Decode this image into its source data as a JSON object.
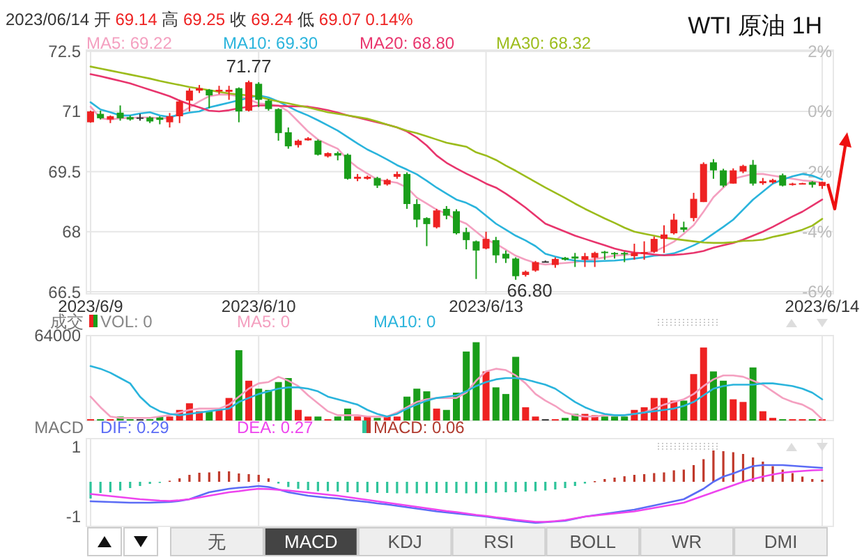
{
  "chart_data": [
    {
      "type": "candlestick",
      "title": "WTI 原油 1H",
      "annotations": [
        "2023/06/14 开 69.14 高 69.25 收 69.24 低 69.07 0.14%",
        {
          "text": "71.77",
          "y": 71.77
        },
        {
          "text": "66.80",
          "y": 66.8
        }
      ],
      "categories": [
        "2023/6/9",
        null,
        null,
        null,
        null,
        null,
        null,
        null,
        null,
        null,
        null,
        null,
        null,
        null,
        null,
        null,
        null,
        "2023/6/10",
        null,
        null,
        null,
        null,
        null,
        null,
        null,
        null,
        null,
        null,
        null,
        null,
        null,
        null,
        null,
        null,
        null,
        null,
        null,
        null,
        null,
        null,
        "2023/6/13",
        null,
        null,
        null,
        null,
        null,
        null,
        null,
        null,
        null,
        null,
        null,
        null,
        null,
        null,
        null,
        null,
        null,
        null,
        null,
        null,
        null,
        null,
        null,
        null,
        null,
        null,
        null,
        null,
        null,
        null,
        null,
        null,
        null,
        "2023/6/14"
      ],
      "ohlc": [
        [
          70.73,
          71.02,
          70.72,
          71.0
        ],
        [
          70.94,
          71.02,
          70.8,
          70.83
        ],
        [
          70.8,
          70.9,
          70.71,
          70.88
        ],
        [
          70.97,
          71.15,
          70.77,
          70.83
        ],
        [
          70.86,
          70.9,
          70.77,
          70.8
        ],
        [
          70.85,
          70.94,
          70.77,
          70.85
        ],
        [
          70.85,
          70.88,
          70.71,
          70.75
        ],
        [
          70.85,
          70.88,
          70.68,
          70.79
        ],
        [
          70.73,
          70.96,
          70.6,
          70.88
        ],
        [
          70.88,
          71.29,
          70.71,
          71.25
        ],
        [
          71.27,
          71.58,
          71.0,
          71.52
        ],
        [
          71.52,
          71.66,
          71.46,
          71.58
        ],
        [
          71.54,
          71.56,
          71.08,
          71.4
        ],
        [
          71.5,
          71.64,
          71.43,
          71.54
        ],
        [
          71.49,
          71.64,
          71.29,
          71.54
        ],
        [
          71.58,
          71.6,
          70.73,
          71.0
        ],
        [
          71.02,
          71.77,
          71.0,
          71.73
        ],
        [
          71.69,
          71.73,
          71.11,
          71.29
        ],
        [
          71.27,
          71.31,
          71.02,
          71.06
        ],
        [
          71.06,
          71.08,
          70.27,
          70.46
        ],
        [
          70.48,
          70.6,
          70.07,
          70.13
        ],
        [
          70.16,
          70.3,
          70.1,
          70.27
        ],
        [
          70.28,
          70.36,
          70.27,
          70.33
        ],
        [
          70.27,
          70.3,
          69.9,
          69.92
        ],
        [
          69.88,
          69.98,
          69.85,
          69.96
        ],
        [
          69.96,
          70.0,
          69.78,
          69.9
        ],
        [
          69.92,
          69.95,
          69.3,
          69.32
        ],
        [
          69.32,
          69.44,
          69.26,
          69.37
        ],
        [
          69.32,
          69.4,
          69.3,
          69.37
        ],
        [
          69.34,
          69.37,
          69.09,
          69.15
        ],
        [
          69.18,
          69.32,
          69.15,
          69.29
        ],
        [
          69.37,
          69.5,
          69.32,
          69.44
        ],
        [
          69.44,
          69.48,
          68.57,
          68.69
        ],
        [
          68.69,
          68.81,
          68.11,
          68.3
        ],
        [
          68.34,
          68.36,
          67.64,
          68.19
        ],
        [
          68.11,
          68.57,
          68.08,
          68.53
        ],
        [
          68.57,
          68.64,
          68.31,
          68.4
        ],
        [
          68.51,
          68.56,
          67.93,
          67.96
        ],
        [
          67.99,
          68.1,
          67.56,
          67.79
        ],
        [
          67.76,
          67.78,
          66.82,
          67.53
        ],
        [
          67.58,
          68.0,
          67.56,
          67.82
        ],
        [
          67.79,
          67.87,
          67.22,
          67.41
        ],
        [
          67.45,
          67.53,
          67.22,
          67.33
        ],
        [
          67.33,
          67.36,
          66.8,
          66.89
        ],
        [
          66.92,
          67.03,
          66.88,
          67.0
        ],
        [
          67.03,
          67.27,
          67.0,
          67.24
        ],
        [
          67.26,
          67.28,
          67.24,
          67.26
        ],
        [
          67.17,
          67.36,
          67.1,
          67.32
        ],
        [
          67.35,
          67.37,
          67.28,
          67.3
        ],
        [
          67.38,
          67.47,
          67.12,
          67.33
        ],
        [
          67.3,
          67.47,
          67.12,
          67.39
        ],
        [
          67.35,
          67.5,
          67.12,
          67.47
        ],
        [
          67.5,
          67.52,
          67.3,
          67.47
        ],
        [
          67.47,
          67.49,
          67.33,
          67.46
        ],
        [
          67.47,
          67.5,
          67.24,
          67.44
        ],
        [
          67.39,
          67.7,
          67.3,
          67.47
        ],
        [
          67.45,
          67.76,
          67.3,
          67.49
        ],
        [
          67.5,
          67.88,
          67.47,
          67.82
        ],
        [
          67.82,
          68.16,
          67.47,
          67.93
        ],
        [
          67.96,
          68.45,
          67.93,
          68.3
        ],
        [
          68.11,
          68.25,
          67.99,
          68.05
        ],
        [
          68.34,
          68.97,
          68.26,
          68.82
        ],
        [
          68.74,
          69.73,
          68.74,
          69.69
        ],
        [
          69.73,
          69.81,
          69.32,
          69.53
        ],
        [
          69.53,
          69.57,
          69.11,
          69.15
        ],
        [
          69.2,
          69.58,
          69.2,
          69.53
        ],
        [
          69.5,
          69.67,
          69.46,
          69.64
        ],
        [
          69.67,
          69.79,
          69.15,
          69.2
        ],
        [
          69.21,
          69.34,
          69.17,
          69.26
        ],
        [
          69.23,
          69.32,
          69.2,
          69.29
        ],
        [
          69.41,
          69.45,
          69.13,
          69.15
        ],
        [
          69.17,
          69.22,
          69.15,
          69.2
        ],
        [
          69.2,
          69.22,
          69.18,
          69.21
        ],
        [
          69.24,
          69.26,
          69.1,
          69.17
        ],
        [
          69.14,
          69.25,
          69.07,
          69.24
        ]
      ],
      "colors": [
        "#ee2222",
        "#1a9e1a",
        "#ee2222",
        "#1a9e1a",
        "#1a9e1a",
        "#333333",
        "#1a9e1a",
        "#1a9e1a",
        "#ee2222",
        "#ee2222",
        "#ee2222",
        "#ee2222",
        "#1a9e1a",
        "#ee2222",
        "#ee2222",
        "#1a9e1a",
        "#ee2222",
        "#1a9e1a",
        "#1a9e1a",
        "#1a9e1a",
        "#1a9e1a",
        "#ee2222",
        "#ee2222",
        "#1a9e1a",
        "#ee2222",
        "#1a9e1a",
        "#1a9e1a",
        "#ee2222",
        "#ee2222",
        "#1a9e1a",
        "#ee2222",
        "#ee2222",
        "#1a9e1a",
        "#1a9e1a",
        "#1a9e1a",
        "#ee2222",
        "#1a9e1a",
        "#1a9e1a",
        "#1a9e1a",
        "#1a9e1a",
        "#ee2222",
        "#1a9e1a",
        "#1a9e1a",
        "#1a9e1a",
        "#ee2222",
        "#ee2222",
        "#333333",
        "#ee2222",
        "#1a9e1a",
        "#1a9e1a",
        "#ee2222",
        "#ee2222",
        "#1a9e1a",
        "#1a9e1a",
        "#1a9e1a",
        "#ee2222",
        "#ee2222",
        "#ee2222",
        "#ee2222",
        "#ee2222",
        "#1a9e1a",
        "#ee2222",
        "#ee2222",
        "#1a9e1a",
        "#1a9e1a",
        "#ee2222",
        "#ee2222",
        "#1a9e1a",
        "#ee2222",
        "#ee2222",
        "#1a9e1a",
        "#ee2222",
        "#ee2222",
        "#1a9e1a",
        "#ee2222"
      ],
      "series": [
        {
          "type": "line",
          "name": "MA5: 69.22",
          "color": "#f4a0c0",
          "values": [
            71.12,
            70.83,
            70.8,
            70.83,
            70.84,
            70.85,
            70.85,
            70.83,
            70.83,
            70.95,
            71.1,
            71.25,
            71.38,
            71.42,
            71.42,
            71.38,
            71.3,
            71.2,
            71.18,
            71.15,
            71.0,
            70.75,
            70.5,
            70.3,
            70.18,
            70.07,
            69.8,
            69.6,
            69.45,
            69.3,
            69.26,
            69.22,
            69.1,
            68.85,
            68.7,
            68.55,
            68.45,
            68.3,
            68.2,
            68.0,
            67.8,
            67.7,
            67.55,
            67.4,
            67.3,
            67.22,
            67.18,
            67.2,
            67.22,
            67.24,
            67.28,
            67.32,
            67.36,
            67.4,
            67.42,
            67.45,
            67.47,
            67.5,
            67.62,
            67.75,
            67.95,
            68.16,
            68.5,
            68.86,
            69.1,
            69.32,
            69.38,
            69.44,
            69.44,
            69.4,
            69.36,
            69.32,
            69.28,
            69.26,
            69.22
          ]
        },
        {
          "type": "line",
          "name": "MA10: 69.30",
          "color": "#2ab4dc",
          "values": [
            71.23,
            71.05,
            70.98,
            70.9,
            70.9,
            70.95,
            70.98,
            70.9,
            70.86,
            70.92,
            70.97,
            71.0,
            71.1,
            71.16,
            71.22,
            71.28,
            71.34,
            71.4,
            71.35,
            71.25,
            71.12,
            71.0,
            70.9,
            70.78,
            70.65,
            70.52,
            70.36,
            70.2,
            70.05,
            69.93,
            69.8,
            69.66,
            69.55,
            69.43,
            69.27,
            69.1,
            68.95,
            68.8,
            68.72,
            68.6,
            68.4,
            68.2,
            68.05,
            67.9,
            67.78,
            67.64,
            67.45,
            67.38,
            67.32,
            67.28,
            67.26,
            67.26,
            67.27,
            67.28,
            67.3,
            67.33,
            67.36,
            67.4,
            67.42,
            67.46,
            67.55,
            67.66,
            67.78,
            67.95,
            68.12,
            68.3,
            68.55,
            68.8,
            69.0,
            69.2,
            69.3,
            69.38,
            69.44,
            69.4,
            69.3
          ]
        },
        {
          "type": "line",
          "name": "MA20: 68.80",
          "color": "#e8356d",
          "values": [
            71.93,
            71.88,
            71.82,
            71.76,
            71.7,
            71.62,
            71.54,
            71.46,
            71.38,
            71.27,
            71.18,
            71.1,
            71.02,
            71.0,
            71.03,
            71.08,
            71.12,
            71.15,
            71.15,
            71.14,
            71.13,
            71.13,
            71.12,
            71.08,
            71.03,
            70.97,
            70.9,
            70.85,
            70.79,
            70.73,
            70.67,
            70.6,
            70.5,
            70.35,
            70.15,
            69.9,
            69.72,
            69.58,
            69.45,
            69.33,
            69.2,
            69.1,
            68.95,
            68.78,
            68.6,
            68.4,
            68.2,
            68.1,
            68.0,
            67.9,
            67.82,
            67.74,
            67.66,
            67.58,
            67.52,
            67.48,
            67.46,
            67.43,
            67.41,
            67.42,
            67.44,
            67.47,
            67.52,
            67.6,
            67.66,
            67.72,
            67.8,
            67.9,
            68.0,
            68.12,
            68.25,
            68.38,
            68.5,
            68.65,
            68.8
          ]
        },
        {
          "type": "line",
          "name": "MA30: 68.32",
          "color": "#9cbc1c",
          "values": [
            72.12,
            72.07,
            72.02,
            71.97,
            71.92,
            71.87,
            71.82,
            71.76,
            71.71,
            71.66,
            71.61,
            71.57,
            71.53,
            71.49,
            71.45,
            71.42,
            71.4,
            71.37,
            71.3,
            71.25,
            71.2,
            71.15,
            71.1,
            71.04,
            70.98,
            70.94,
            70.9,
            70.86,
            70.82,
            70.75,
            70.67,
            70.6,
            70.52,
            70.46,
            70.38,
            70.3,
            70.22,
            70.17,
            70.12,
            69.98,
            69.9,
            69.79,
            69.65,
            69.52,
            69.38,
            69.24,
            69.1,
            68.97,
            68.84,
            68.7,
            68.57,
            68.45,
            68.33,
            68.22,
            68.1,
            68.0,
            67.95,
            67.9,
            67.85,
            67.82,
            67.79,
            67.76,
            67.73,
            67.72,
            67.72,
            67.74,
            67.77,
            67.78,
            67.8,
            67.87,
            67.92,
            67.98,
            68.05,
            68.15,
            68.32
          ]
        }
      ],
      "ylim": [
        66.45,
        72.53
      ],
      "yticks": [
        66.5,
        68,
        69.5,
        71,
        72.5
      ],
      "y2lim": [
        -6.07,
        2.04
      ],
      "y2ticks": [
        {
          "value": 2,
          "label": "2%"
        },
        {
          "value": 0,
          "label": "0%"
        },
        {
          "value": -2,
          "label": "-2%"
        },
        {
          "value": -4,
          "label": "-4%"
        },
        {
          "value": -6,
          "label": "-6%"
        }
      ],
      "grid": true,
      "legend": "top"
    },
    {
      "type": "bar",
      "ylabel": "成交",
      "tick_labels": "y",
      "categories": [
        "2023/6/9",
        null,
        null,
        null,
        null,
        null,
        null,
        null,
        null,
        null,
        null,
        null,
        null,
        null,
        null,
        null,
        null,
        "2023/6/10",
        null,
        null,
        null,
        null,
        null,
        null,
        null,
        null,
        null,
        null,
        null,
        null,
        null,
        null,
        null,
        null,
        null,
        null,
        null,
        null,
        null,
        null,
        "2023/6/13",
        null,
        null,
        null,
        null,
        null,
        null,
        null,
        null,
        null,
        null,
        null,
        null,
        null,
        null,
        null,
        null,
        null,
        null,
        null,
        null,
        null,
        null,
        null,
        null,
        null,
        null,
        null,
        null,
        null,
        null,
        null,
        null,
        null,
        "2023/6/14"
      ],
      "series": [
        {
          "name": "VOL: 0",
          "color": "#888888",
          "colors": [
            "#ee2222",
            "#1a9e1a",
            "#ee2222",
            "#1a9e1a",
            "#1a9e1a",
            "#333333",
            "#1a9e1a",
            "#1a9e1a",
            "#ee2222",
            "#ee2222",
            "#ee2222",
            "#ee2222",
            "#1a9e1a",
            "#ee2222",
            "#ee2222",
            "#1a9e1a",
            "#ee2222",
            "#1a9e1a",
            "#1a9e1a",
            "#1a9e1a",
            "#1a9e1a",
            "#ee2222",
            "#ee2222",
            "#1a9e1a",
            "#ee2222",
            "#1a9e1a",
            "#1a9e1a",
            "#ee2222",
            "#ee2222",
            "#1a9e1a",
            "#ee2222",
            "#ee2222",
            "#1a9e1a",
            "#1a9e1a",
            "#1a9e1a",
            "#ee2222",
            "#1a9e1a",
            "#1a9e1a",
            "#1a9e1a",
            "#1a9e1a",
            "#ee2222",
            "#1a9e1a",
            "#1a9e1a",
            "#1a9e1a",
            "#ee2222",
            "#ee2222",
            "#333333",
            "#ee2222",
            "#1a9e1a",
            "#1a9e1a",
            "#ee2222",
            "#ee2222",
            "#1a9e1a",
            "#1a9e1a",
            "#1a9e1a",
            "#ee2222",
            "#ee2222",
            "#ee2222",
            "#ee2222",
            "#ee2222",
            "#1a9e1a",
            "#ee2222",
            "#ee2222",
            "#1a9e1a",
            "#1a9e1a",
            "#ee2222",
            "#ee2222",
            "#1a9e1a",
            "#ee2222",
            "#ee2222",
            "#1a9e1a",
            "#ee2222",
            "#ee2222",
            "#1a9e1a",
            "#ee2222"
          ],
          "values": [
            1000,
            1000,
            1000,
            3000,
            1000,
            1000,
            1000,
            3000,
            3000,
            8000,
            13000,
            7000,
            7000,
            8000,
            17000,
            53000,
            30000,
            24000,
            23000,
            29000,
            32000,
            8000,
            3000,
            3000,
            1000,
            3000,
            9000,
            3000,
            3000,
            2000,
            3000,
            3000,
            18000,
            24000,
            22000,
            9000,
            8000,
            21000,
            52000,
            59000,
            37000,
            25000,
            20000,
            48000,
            10000,
            3000,
            1000,
            1000,
            2000,
            5000,
            5000,
            4000,
            3000,
            3000,
            3000,
            8000,
            10000,
            17000,
            17000,
            15000,
            15000,
            35000,
            55000,
            37000,
            30000,
            16000,
            14000,
            40000,
            7000,
            2000,
            1000,
            1000,
            1000,
            1000,
            1000
          ]
        },
        {
          "type": "line",
          "name": "MA5: 0",
          "color": "#f4a0c0",
          "values": [
            18000,
            10000,
            3000,
            2000,
            2000,
            2000,
            2000,
            3000,
            4000,
            6000,
            8000,
            9000,
            9000,
            9000,
            12000,
            18000,
            24000,
            28000,
            29000,
            33000,
            30000,
            26000,
            19000,
            13000,
            7000,
            4000,
            4000,
            4000,
            3000,
            3000,
            3000,
            6000,
            10000,
            14000,
            16000,
            17000,
            17000,
            17000,
            21000,
            30000,
            37000,
            39000,
            38000,
            34000,
            28000,
            20000,
            15000,
            11000,
            6000,
            4000,
            3000,
            3000,
            4000,
            4000,
            4000,
            5000,
            6000,
            9000,
            12000,
            14000,
            16000,
            20000,
            26000,
            31000,
            34000,
            34000,
            33000,
            30000,
            27000,
            22000,
            17000,
            14000,
            12000,
            8000,
            1000
          ]
        },
        {
          "type": "line",
          "name": "MA10: 0",
          "color": "#2ab4dc",
          "values": [
            41000,
            39000,
            36000,
            32000,
            28000,
            18000,
            11000,
            7000,
            5000,
            4000,
            5000,
            6000,
            7000,
            8000,
            9000,
            14000,
            17000,
            20000,
            22000,
            24000,
            25000,
            25000,
            24000,
            22000,
            18000,
            16000,
            14000,
            12000,
            8000,
            5000,
            3000,
            5000,
            9000,
            12000,
            15000,
            17000,
            18000,
            19000,
            22000,
            26000,
            29000,
            31000,
            32000,
            32000,
            31000,
            29000,
            27000,
            24000,
            19000,
            14000,
            10000,
            7000,
            5000,
            4000,
            4000,
            5000,
            6000,
            7000,
            8000,
            9000,
            11000,
            14000,
            19000,
            24000,
            26000,
            27000,
            27000,
            27000,
            28000,
            28000,
            27000,
            26000,
            24000,
            21000,
            16000
          ]
        }
      ],
      "ylim": [
        0,
        64000
      ],
      "yticks": [
        {
          "value": 0,
          "label": null
        },
        64000
      ],
      "grid": true,
      "legend": "top"
    },
    {
      "type": "bar",
      "ylabel": "MACD",
      "tick_labels": "y",
      "categories": [
        "2023/6/9",
        null,
        null,
        null,
        null,
        null,
        null,
        null,
        null,
        null,
        null,
        null,
        null,
        null,
        null,
        null,
        null,
        "2023/6/10",
        null,
        null,
        null,
        null,
        null,
        null,
        null,
        null,
        null,
        null,
        null,
        null,
        null,
        null,
        null,
        null,
        null,
        null,
        null,
        null,
        null,
        null,
        "2023/6/13",
        null,
        null,
        null,
        null,
        null,
        null,
        null,
        null,
        null,
        null,
        null,
        null,
        null,
        null,
        null,
        null,
        null,
        null,
        null,
        null,
        null,
        null,
        null,
        null,
        null,
        null,
        null,
        null,
        null,
        null,
        null,
        null,
        null,
        "2023/6/14"
      ],
      "series": [
        {
          "type": "line",
          "name": "DIF: 0.29",
          "color": "#5b6cf5",
          "values": [
            -0.56,
            -0.57,
            -0.58,
            -0.59,
            -0.6,
            -0.6,
            -0.6,
            -0.59,
            -0.58,
            -0.55,
            -0.5,
            -0.4,
            -0.3,
            -0.25,
            -0.2,
            -0.17,
            -0.15,
            -0.12,
            -0.15,
            -0.22,
            -0.3,
            -0.35,
            -0.4,
            -0.43,
            -0.46,
            -0.48,
            -0.52,
            -0.55,
            -0.58,
            -0.62,
            -0.65,
            -0.69,
            -0.73,
            -0.77,
            -0.81,
            -0.85,
            -0.88,
            -0.91,
            -0.94,
            -0.97,
            -1.0,
            -1.04,
            -1.08,
            -1.12,
            -1.15,
            -1.18,
            -1.16,
            -1.14,
            -1.12,
            -1.06,
            -1.0,
            -0.96,
            -0.92,
            -0.88,
            -0.84,
            -0.8,
            -0.74,
            -0.68,
            -0.62,
            -0.56,
            -0.5,
            -0.35,
            -0.2,
            0.0,
            0.15,
            0.24,
            0.35,
            0.45,
            0.48,
            0.48,
            0.48,
            0.46,
            0.44,
            0.42,
            0.4
          ]
        },
        {
          "type": "line",
          "name": "DEA: 0.27",
          "color": "#ee44ee",
          "values": [
            -0.35,
            -0.38,
            -0.41,
            -0.44,
            -0.47,
            -0.5,
            -0.52,
            -0.54,
            -0.55,
            -0.53,
            -0.5,
            -0.45,
            -0.4,
            -0.35,
            -0.3,
            -0.27,
            -0.23,
            -0.2,
            -0.21,
            -0.23,
            -0.25,
            -0.28,
            -0.31,
            -0.34,
            -0.37,
            -0.4,
            -0.44,
            -0.48,
            -0.52,
            -0.56,
            -0.6,
            -0.64,
            -0.68,
            -0.72,
            -0.76,
            -0.8,
            -0.84,
            -0.87,
            -0.91,
            -0.95,
            -0.98,
            -1.02,
            -1.05,
            -1.09,
            -1.12,
            -1.15,
            -1.15,
            -1.13,
            -1.1,
            -1.05,
            -1.0,
            -0.97,
            -0.94,
            -0.91,
            -0.88,
            -0.85,
            -0.8,
            -0.75,
            -0.7,
            -0.65,
            -0.6,
            -0.5,
            -0.4,
            -0.3,
            -0.2,
            -0.1,
            0.0,
            0.08,
            0.15,
            0.21,
            0.26,
            0.29,
            0.31,
            0.33,
            0.34
          ]
        },
        {
          "type": "bar",
          "name": "MACD: 0.06",
          "color": "#b03a2e",
          "colors": [
            "#2ec49a",
            "#2ec49a",
            "#2ec49a",
            "#2ec49a",
            "#2ec49a",
            "#2ec49a",
            "#2ec49a",
            "#2ec49a",
            "#c0392b",
            "#c0392b",
            "#c0392b",
            "#c0392b",
            "#c0392b",
            "#c0392b",
            "#c0392b",
            "#c0392b",
            "#c0392b",
            "#c0392b",
            "#c0392b",
            "#2ec49a",
            "#2ec49a",
            "#2ec49a",
            "#2ec49a",
            "#2ec49a",
            "#2ec49a",
            "#2ec49a",
            "#2ec49a",
            "#2ec49a",
            "#2ec49a",
            "#2ec49a",
            "#2ec49a",
            "#2ec49a",
            "#2ec49a",
            "#2ec49a",
            "#2ec49a",
            "#2ec49a",
            "#2ec49a",
            "#2ec49a",
            "#2ec49a",
            "#2ec49a",
            "#2ec49a",
            "#2ec49a",
            "#2ec49a",
            "#2ec49a",
            "#2ec49a",
            "#2ec49a",
            "#2ec49a",
            "#2ec49a",
            "#2ec49a",
            "#2ec49a",
            "#2ec49a",
            "#c0392b",
            "#c0392b",
            "#c0392b",
            "#c0392b",
            "#c0392b",
            "#c0392b",
            "#c0392b",
            "#c0392b",
            "#c0392b",
            "#c0392b",
            "#c0392b",
            "#c0392b",
            "#c0392b",
            "#c0392b",
            "#c0392b",
            "#c0392b",
            "#c0392b",
            "#c0392b",
            "#c0392b",
            "#c0392b",
            "#c0392b",
            "#c0392b",
            "#c0392b",
            "#c0392b"
          ],
          "values": [
            -0.48,
            -0.32,
            -0.3,
            -0.25,
            -0.18,
            -0.12,
            -0.06,
            -0.02,
            0.03,
            0.1,
            0.2,
            0.26,
            0.27,
            0.3,
            0.3,
            0.24,
            0.22,
            0.2,
            0.1,
            -0.05,
            -0.15,
            -0.2,
            -0.24,
            -0.27,
            -0.27,
            -0.28,
            -0.3,
            -0.3,
            -0.3,
            -0.32,
            -0.32,
            -0.33,
            -0.33,
            -0.33,
            -0.33,
            -0.32,
            -0.32,
            -0.32,
            -0.33,
            -0.33,
            -0.32,
            -0.31,
            -0.3,
            -0.3,
            -0.28,
            -0.27,
            -0.25,
            -0.22,
            -0.18,
            -0.12,
            -0.05,
            0.02,
            0.08,
            0.12,
            0.16,
            0.2,
            0.22,
            0.25,
            0.27,
            0.33,
            0.35,
            0.48,
            0.65,
            0.9,
            0.88,
            0.85,
            0.8,
            0.7,
            0.58,
            0.45,
            0.35,
            0.25,
            0.15,
            0.08,
            0.06
          ]
        }
      ],
      "ylim": [
        -1.28,
        1.24
      ],
      "yticks": [
        1,
        -1
      ],
      "grid": "x",
      "legend": "top"
    },
    {
      "type": "other",
      "annotations": [
        "无",
        "MACD",
        "KDJ",
        "RSI",
        "BOLL",
        "WR",
        "DMI"
      ]
    }
  ]
}
